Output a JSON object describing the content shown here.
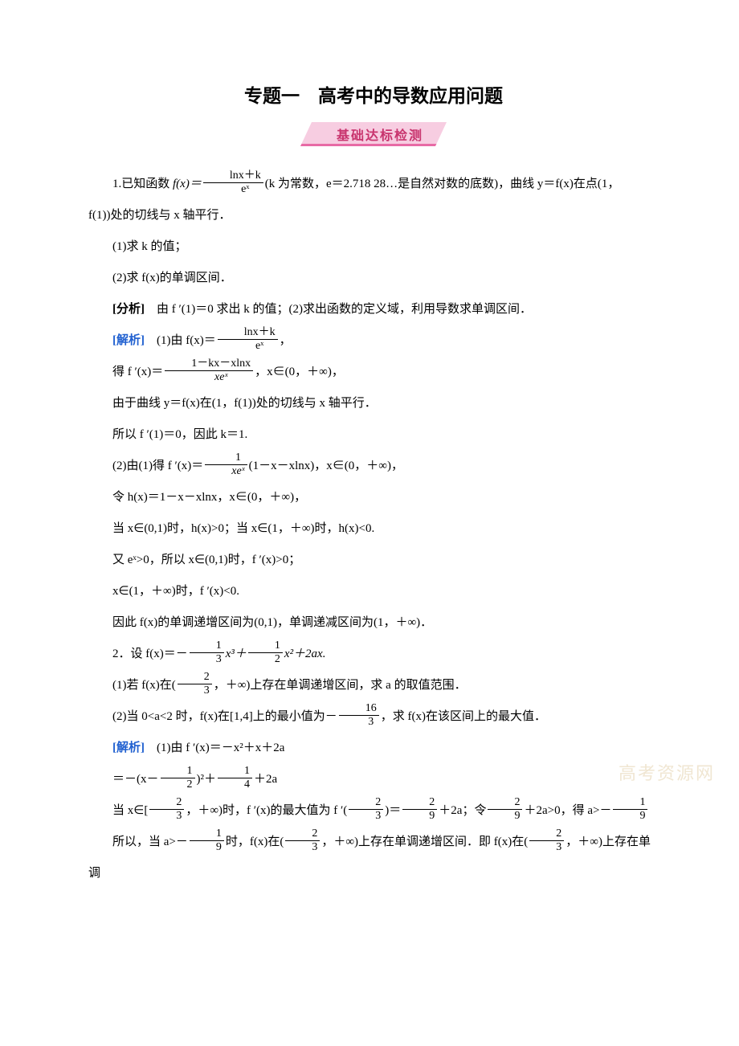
{
  "colors": {
    "background": "#ffffff",
    "text": "#000000",
    "accent_blue": "#2060d0",
    "banner_bg": "#f7cde1",
    "banner_border": "#e86aa5",
    "banner_text": "#c8336d",
    "watermark": "#f0e6d2"
  },
  "typography": {
    "title_fontsize": 23,
    "banner_fontsize": 16,
    "body_fontsize": 15,
    "frac_fontsize": 14,
    "watermark_fontsize": 22,
    "body_line_height": 2.6
  },
  "title": "专题一　高考中的导数应用问题",
  "banner": "基础达标检测",
  "watermark": "高考资源网",
  "q1": {
    "intro_a": "1.已知函数 ",
    "fx": "f(x)＝",
    "frac1_num": "lnx＋k",
    "frac1_den": "eˣ",
    "intro_b": "(k 为常数，e＝2.718 28…是自然对数的底数)，曲线 y＝f(x)在点(1，",
    "intro_c": "f(1))处的切线与 x 轴平行．",
    "p1": "(1)求 k 的值；",
    "p2": "(2)求 f(x)的单调区间．",
    "analysis_label": "[分析]",
    "analysis": "　由 f ′(1)＝0 求出 k 的值；(2)求出函数的定义域，利用导数求单调区间．",
    "solve_label": "[解析]",
    "s1a": "　(1)由 f(x)＝",
    "s1_num": "lnx＋k",
    "s1_den": "eˣ",
    "s1b": "，",
    "s2a": "得 f ′(x)＝",
    "s2_num": "1－kx－xlnx",
    "s2_den": "xeˣ",
    "s2b": "，x∈(0，＋∞)，",
    "s3": "由于曲线 y＝f(x)在(1，f(1))处的切线与 x 轴平行．",
    "s4": "所以 f ′(1)＝0，因此 k＝1.",
    "s5a": "(2)由(1)得 f ′(x)＝",
    "s5_num": "1",
    "s5_den": "xeˣ",
    "s5b": "(1－x－xlnx)，x∈(0，＋∞)，",
    "s6": "令 h(x)＝1－x－xlnx，x∈(0，＋∞)，",
    "s7": "当 x∈(0,1)时，h(x)>0；当 x∈(1，＋∞)时，h(x)<0.",
    "s8": "又 eˣ>0，所以 x∈(0,1)时，f ′(x)>0；",
    "s9": "x∈(1，＋∞)时，f ′(x)<0.",
    "s10": "因此 f(x)的单调递增区间为(0,1)，单调递减区间为(1，＋∞)．"
  },
  "q2": {
    "intro_a": "2．设 f(x)＝－",
    "f1_num": "1",
    "f1_den": "3",
    "intro_b": "x³＋",
    "f2_num": "1",
    "f2_den": "2",
    "intro_c": "x²＋2ax.",
    "p1a": "(1)若 f(x)在(",
    "p1_num": "2",
    "p1_den": "3",
    "p1b": "，＋∞)上存在单调递增区间，求 a 的取值范围．",
    "p2a": "(2)当 0<a<2 时，f(x)在[1,4]上的最小值为－",
    "p2_num": "16",
    "p2_den": "3",
    "p2b": "，求 f(x)在该区间上的最大值．",
    "solve_label": "[解析]",
    "s1": "　(1)由 f ′(x)＝－x²＋x＋2a",
    "s2a": "＝－(x－",
    "s2f1_num": "1",
    "s2f1_den": "2",
    "s2b": ")²＋",
    "s2f2_num": "1",
    "s2f2_den": "4",
    "s2c": "＋2a",
    "s3a": "当 x∈[",
    "s3f1_num": "2",
    "s3f1_den": "3",
    "s3b": "，＋∞)时，f ′(x)的最大值为 f ′(",
    "s3f2_num": "2",
    "s3f2_den": "3",
    "s3c": ")＝",
    "s3f3_num": "2",
    "s3f3_den": "9",
    "s3d": "＋2a；令",
    "s3f4_num": "2",
    "s3f4_den": "9",
    "s3e": "＋2a>0，得 a>－",
    "s3f5_num": "1",
    "s3f5_den": "9",
    "s4a": "所以，当 a>－",
    "s4f1_num": "1",
    "s4f1_den": "9",
    "s4b": "时，f(x)在(",
    "s4f2_num": "2",
    "s4f2_den": "3",
    "s4c": "，＋∞)上存在单调递增区间．即 f(x)在(",
    "s4f3_num": "2",
    "s4f3_den": "3",
    "s4d": "，＋∞)上存在单调"
  }
}
